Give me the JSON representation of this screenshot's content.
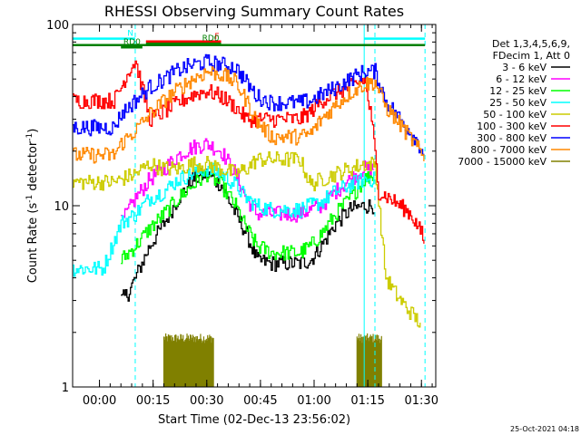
{
  "chart_data": {
    "type": "line",
    "title": "RHESSI Observing Summary Count Rates",
    "xlabel": "Start Time (02-Dec-13 23:56:02)",
    "ylabel": "Count Rate (s⁻¹ detector⁻¹)",
    "ylabel_parts": [
      "Count Rate (s",
      "-1",
      " detector",
      "-1",
      ")"
    ],
    "y_scale": "log",
    "ylim": [
      1,
      100
    ],
    "y_ticks": [
      {
        "value": 1,
        "label": "1"
      },
      {
        "value": 10,
        "label": "10"
      },
      {
        "value": 100,
        "label": "100"
      }
    ],
    "xlim_min": [
      -3.5,
      34.5
    ],
    "x_ticks": [
      {
        "value": 4,
        "label": "00:00"
      },
      {
        "value": 19,
        "label": "00:15"
      },
      {
        "value": 34,
        "label": "00:30"
      },
      {
        "value": 49,
        "label": "00:45"
      },
      {
        "value": 64,
        "label": "01:00"
      },
      {
        "value": 79,
        "label": "01:15"
      },
      {
        "value": 94,
        "label": "01:30"
      }
    ],
    "xlim": [
      -3.5,
      98
    ],
    "legend_header": [
      "Det 1,3,4,5,6,9,",
      "FDecim 1, Att 0"
    ],
    "legend_placement": "right",
    "timestamp": "25-Oct-2021 04:18",
    "series": [
      {
        "name": "3 - 6 keV",
        "color": "#000000",
        "x": [
          -3.5,
          8,
          10,
          12,
          14,
          18,
          22,
          26,
          30,
          34,
          38,
          42,
          45,
          48,
          52,
          56,
          60,
          63,
          66,
          70,
          74,
          78,
          81,
          84
        ],
        "y": [
          null,
          null,
          3,
          3.3,
          4,
          6,
          8,
          11,
          14,
          15,
          13,
          9,
          7,
          5,
          4.8,
          4.8,
          4.8,
          5,
          6,
          8,
          9.5,
          10,
          10,
          null
        ]
      },
      {
        "name": "6 - 12 keV",
        "color": "#ff00ff",
        "x": [
          10,
          14,
          18,
          22,
          26,
          30,
          34,
          38,
          42,
          45,
          48,
          52,
          56,
          60,
          63,
          66,
          70,
          74,
          78,
          81
        ],
        "y": [
          8,
          11,
          14,
          16,
          19,
          21,
          22,
          20,
          15,
          11,
          9,
          9,
          9,
          9,
          9.5,
          10,
          12,
          14,
          16,
          16
        ]
      },
      {
        "name": "12 - 25 keV",
        "color": "#00ff00",
        "x": [
          10,
          14,
          18,
          22,
          26,
          30,
          34,
          38,
          42,
          45,
          48,
          52,
          56,
          60,
          63,
          66,
          70,
          74,
          78,
          81
        ],
        "y": [
          5,
          6,
          7.5,
          9,
          11,
          13,
          15,
          13,
          10,
          7.5,
          6,
          5.5,
          5.5,
          5.5,
          6,
          7,
          9,
          11,
          14,
          15
        ]
      },
      {
        "name": "25 - 50 keV",
        "color": "#00ffff",
        "x": [
          -3.5,
          5,
          10,
          14,
          18,
          22,
          26,
          30,
          34,
          38,
          42,
          45,
          48,
          52,
          56,
          60,
          63,
          66,
          70,
          74,
          78,
          81
        ],
        "y": [
          4.5,
          4.5,
          8,
          9,
          11,
          12,
          14,
          15,
          16,
          15,
          13,
          11,
          10,
          9.5,
          9.5,
          9.5,
          10,
          10.5,
          12,
          13,
          14,
          14
        ]
      },
      {
        "name": "50 - 100 keV",
        "color": "#cccc00",
        "x": [
          -3.5,
          8,
          10,
          14,
          18,
          22,
          26,
          30,
          34,
          38,
          42,
          45,
          48,
          52,
          56,
          60,
          63,
          66,
          70,
          74,
          78,
          81,
          84,
          87,
          90,
          94
        ],
        "y": [
          13.5,
          13.5,
          14,
          15,
          17,
          16,
          16,
          17,
          17,
          16,
          15,
          16,
          18,
          18,
          18,
          18,
          13,
          14,
          15,
          16,
          17,
          17,
          4,
          3.2,
          2.7,
          2.2
        ]
      },
      {
        "name": "100 - 300 keV",
        "color": "#ff0000",
        "x": [
          -3.5,
          8,
          10,
          12,
          14,
          18,
          22,
          26,
          30,
          34,
          38,
          42,
          45,
          48,
          52,
          56,
          60,
          63,
          66,
          70,
          74,
          78,
          80,
          82,
          85,
          88,
          91,
          94,
          95
        ],
        "y": [
          38,
          38,
          45,
          55,
          63,
          30,
          33,
          37,
          41,
          43,
          40,
          35,
          30,
          30,
          30,
          30,
          30,
          33,
          38,
          42,
          45,
          50,
          30,
          12,
          11,
          10,
          9,
          7,
          6
        ]
      },
      {
        "name": "300 - 800 keV",
        "color": "#0000ff",
        "x": [
          -3.5,
          8,
          10,
          14,
          18,
          22,
          26,
          30,
          34,
          38,
          42,
          45,
          48,
          52,
          56,
          60,
          63,
          66,
          70,
          74,
          78,
          81,
          84,
          88,
          92,
          95
        ],
        "y": [
          27,
          27,
          32,
          38,
          45,
          50,
          56,
          60,
          62,
          60,
          58,
          48,
          40,
          37,
          37,
          37,
          38,
          41,
          45,
          50,
          55,
          55,
          38,
          30,
          24,
          19
        ]
      },
      {
        "name": "800 - 7000 keV",
        "color": "#ff8800",
        "x": [
          -3.5,
          8,
          10,
          14,
          18,
          22,
          26,
          30,
          34,
          38,
          42,
          45,
          48,
          52,
          56,
          60,
          63,
          66,
          70,
          74,
          78,
          81,
          84,
          88,
          92,
          95
        ],
        "y": [
          19,
          19,
          22,
          26,
          32,
          38,
          44,
          50,
          55,
          53,
          48,
          38,
          29,
          24,
          24,
          24,
          25,
          30,
          36,
          42,
          47,
          48,
          35,
          28,
          22,
          18
        ]
      },
      {
        "name": "7000 - 15000 keV",
        "color": "#808000",
        "x": [
          -3.5,
          95
        ],
        "y": [
          null,
          null
        ]
      }
    ],
    "annotations": [
      {
        "label": "N",
        "color": "#00ffff",
        "x_start": -3.5,
        "x_end": 14,
        "y": 86
      },
      {
        "label": "",
        "color": "#00ffff",
        "x_start": 78,
        "x_end": 95,
        "y": 86
      },
      {
        "label": "F",
        "color": "#ff0000",
        "x_start": 17,
        "x_end": 38,
        "y": 78
      },
      {
        "label": "RD0",
        "color": "#008000",
        "x_start": 17,
        "x_end": 38,
        "y": 72
      },
      {
        "label": "RD0",
        "color": "#008000",
        "x_start": 10,
        "x_end": 16,
        "y": 62
      },
      {
        "label": "",
        "color": "#008000",
        "x_start": -3.5,
        "x_end": 95,
        "y": 68
      }
    ],
    "vertical_lines": [
      {
        "x": 14,
        "color": "#00ffff",
        "dash": true
      },
      {
        "x": 78,
        "color": "#00ffff",
        "dash": false
      },
      {
        "x": 81,
        "color": "#00ffff",
        "dash": true
      },
      {
        "x": 95,
        "color": "#00ffff",
        "dash": true
      }
    ],
    "olive_bursts": [
      {
        "x_start": 22,
        "x_end": 36,
        "y_top": 1.9
      },
      {
        "x_start": 76,
        "x_end": 83,
        "y_top": 1.9
      }
    ]
  }
}
